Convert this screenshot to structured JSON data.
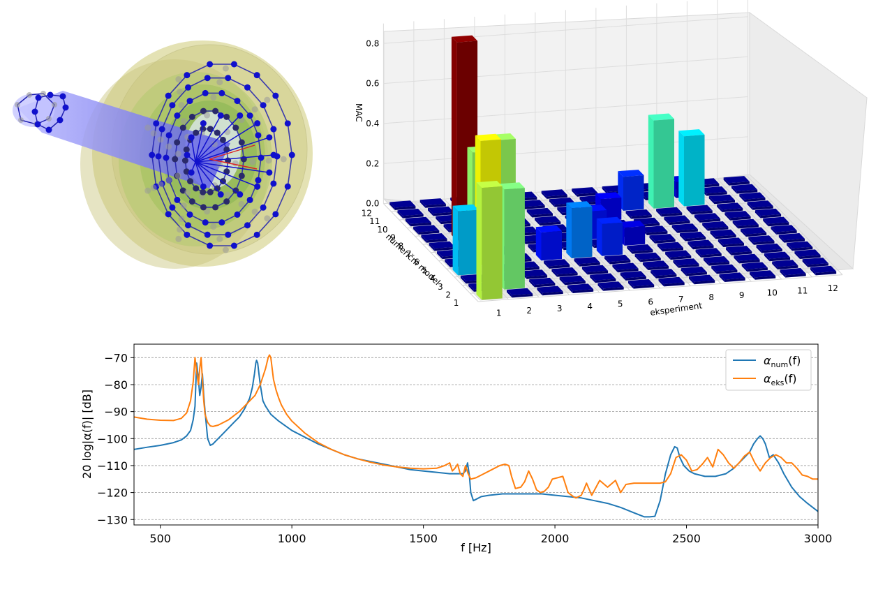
{
  "model": {
    "colors": {
      "shell": "#c8c47a",
      "inner": "#9fc15a",
      "tube": "#8f8ff0",
      "mesh": "#1f1fb0",
      "node": "#1010cc",
      "ghost": "#9a9a9a"
    }
  },
  "chart_data": [
    {
      "type": "bar3d",
      "zlabel": "MAC",
      "xlabel": "eksperiment",
      "ylabel": "numerični model",
      "x_ticks": [
        "1",
        "2",
        "3",
        "4",
        "5",
        "6",
        "7",
        "8",
        "9",
        "10",
        "11",
        "12"
      ],
      "y_ticks": [
        "1",
        "2",
        "3",
        "4",
        "5",
        "6",
        "7",
        "8",
        "9",
        "10",
        "11",
        "12"
      ],
      "z_ticks": [
        "0.0",
        "0.2",
        "0.4",
        "0.6",
        "0.8"
      ],
      "zlim": [
        0,
        0.9
      ],
      "colormap": "jet",
      "bars": [
        {
          "x": 1,
          "y": 1,
          "value": 0.56
        },
        {
          "x": 1,
          "y": 4,
          "value": 0.32
        },
        {
          "x": 2,
          "y": 2,
          "value": 0.5
        },
        {
          "x": 2,
          "y": 5,
          "value": 0.62
        },
        {
          "x": 2,
          "y": 6,
          "value": 0.52
        },
        {
          "x": 2,
          "y": 8,
          "value": 0.99
        },
        {
          "x": 3,
          "y": 7,
          "value": 0.53
        },
        {
          "x": 4,
          "y": 5,
          "value": 0.14
        },
        {
          "x": 5,
          "y": 5,
          "value": 0.25
        },
        {
          "x": 6,
          "y": 5,
          "value": 0.16
        },
        {
          "x": 6,
          "y": 7,
          "value": 0.14
        },
        {
          "x": 7,
          "y": 6,
          "value": 0.09
        },
        {
          "x": 7,
          "y": 9,
          "value": 0.11
        },
        {
          "x": 8,
          "y": 10,
          "value": 0.17
        },
        {
          "x": 9,
          "y": 10,
          "value": 0.44
        },
        {
          "x": 10,
          "y": 10,
          "value": 0.35
        },
        {
          "x": 10,
          "y": 11,
          "value": 0.08
        }
      ]
    },
    {
      "type": "line",
      "xlabel": "f [Hz]",
      "ylabel": "20 log|α(f)| [dB]",
      "xlim": [
        400,
        3000
      ],
      "ylim": [
        -132,
        -65
      ],
      "x_ticks": [
        500,
        1000,
        1500,
        2000,
        2500,
        3000
      ],
      "y_ticks": [
        -70,
        -80,
        -90,
        -100,
        -110,
        -120,
        -130
      ],
      "grid": "y-dashed",
      "legend_position": "top-right",
      "series": [
        {
          "name_prefix": "α",
          "name_sub": "num",
          "name_suffix": "(f)",
          "color": "#1f77b4",
          "x": [
            400,
            450,
            500,
            550,
            580,
            600,
            615,
            625,
            632,
            638,
            645,
            650,
            655,
            660,
            665,
            670,
            680,
            690,
            700,
            720,
            740,
            760,
            780,
            800,
            820,
            840,
            850,
            858,
            863,
            866,
            870,
            875,
            880,
            890,
            900,
            920,
            950,
            1000,
            1050,
            1100,
            1150,
            1200,
            1250,
            1300,
            1350,
            1400,
            1450,
            1500,
            1550,
            1600,
            1630,
            1650,
            1660,
            1668,
            1675,
            1680,
            1690,
            1700,
            1720,
            1750,
            1800,
            1850,
            1900,
            1950,
            2000,
            2050,
            2100,
            2150,
            2200,
            2250,
            2300,
            2340,
            2360,
            2380,
            2400,
            2420,
            2440,
            2455,
            2465,
            2475,
            2490,
            2510,
            2530,
            2550,
            2570,
            2590,
            2610,
            2630,
            2650,
            2680,
            2700,
            2720,
            2740,
            2755,
            2770,
            2780,
            2790,
            2800,
            2815,
            2830,
            2850,
            2870,
            2900,
            2930,
            2960,
            3000
          ],
          "y": [
            -104,
            -103.2,
            -102.5,
            -101.5,
            -100.5,
            -99,
            -97,
            -93,
            -88,
            -72,
            -78,
            -84,
            -81,
            -76,
            -84,
            -90,
            -100,
            -102.5,
            -102,
            -100,
            -98,
            -96,
            -94,
            -92,
            -89,
            -85,
            -81,
            -76,
            -72,
            -71,
            -72,
            -76,
            -80,
            -86,
            -88,
            -91,
            -93.5,
            -97,
            -99.5,
            -102,
            -104,
            -106,
            -107.5,
            -108.5,
            -109.5,
            -110.5,
            -111.5,
            -112,
            -112.5,
            -113,
            -113,
            -113,
            -112,
            -109,
            -114,
            -120,
            -123,
            -122.5,
            -121.5,
            -121,
            -120.5,
            -120.5,
            -120.5,
            -120.5,
            -121,
            -121.5,
            -122,
            -123,
            -124,
            -125.5,
            -127.5,
            -129,
            -129,
            -128.8,
            -123,
            -113,
            -106,
            -103,
            -103.5,
            -107,
            -110,
            -112,
            -113,
            -113.5,
            -114,
            -114,
            -114,
            -113.5,
            -113,
            -111,
            -109,
            -107,
            -105,
            -102,
            -100,
            -99,
            -100,
            -102,
            -107,
            -106,
            -109,
            -113,
            -118,
            -121.5,
            -124,
            -127
          ]
        },
        {
          "name_prefix": "α",
          "name_sub": "eks",
          "name_suffix": "(f)",
          "color": "#ff7f0e",
          "x": [
            400,
            450,
            500,
            550,
            580,
            600,
            615,
            625,
            632,
            638,
            645,
            650,
            655,
            660,
            665,
            670,
            680,
            690,
            700,
            720,
            740,
            760,
            780,
            800,
            820,
            840,
            860,
            880,
            900,
            910,
            915,
            920,
            925,
            930,
            940,
            950,
            960,
            980,
            1000,
            1050,
            1100,
            1150,
            1200,
            1250,
            1300,
            1350,
            1400,
            1450,
            1500,
            1550,
            1580,
            1600,
            1610,
            1620,
            1630,
            1640,
            1650,
            1660,
            1670,
            1680,
            1700,
            1730,
            1760,
            1790,
            1810,
            1825,
            1835,
            1850,
            1870,
            1885,
            1900,
            1915,
            1930,
            1945,
            1960,
            1975,
            1990,
            2010,
            2030,
            2050,
            2070,
            2080,
            2090,
            2100,
            2110,
            2120,
            2140,
            2170,
            2200,
            2230,
            2250,
            2270,
            2300,
            2330,
            2370,
            2400,
            2420,
            2440,
            2460,
            2480,
            2500,
            2520,
            2540,
            2560,
            2580,
            2600,
            2620,
            2640,
            2660,
            2680,
            2700,
            2720,
            2740,
            2760,
            2780,
            2800,
            2820,
            2840,
            2860,
            2880,
            2900,
            2920,
            2940,
            2960,
            2980,
            3000
          ],
          "y": [
            -92,
            -92.8,
            -93.2,
            -93.3,
            -92.5,
            -90.5,
            -86,
            -79,
            -70,
            -75,
            -80,
            -74,
            -70,
            -78,
            -86,
            -91,
            -94,
            -95.3,
            -95.5,
            -95,
            -94,
            -93,
            -91.5,
            -90,
            -88,
            -86,
            -84,
            -80,
            -74,
            -70,
            -69,
            -70,
            -74,
            -78,
            -82,
            -85,
            -87.5,
            -91,
            -93.5,
            -98,
            -101.5,
            -104,
            -106,
            -107.5,
            -108.8,
            -109.8,
            -110.5,
            -111,
            -111.2,
            -111,
            -110,
            -109,
            -112,
            -111,
            -109.5,
            -113,
            -114,
            -110,
            -113,
            -115,
            -114.5,
            -113,
            -111.5,
            -110,
            -109.5,
            -110,
            -114,
            -118.5,
            -118,
            -116,
            -112,
            -115,
            -119,
            -120,
            -119.5,
            -118,
            -115,
            -114.5,
            -114,
            -120,
            -121.5,
            -122,
            -121.5,
            -121,
            -119,
            -116.5,
            -121,
            -115.5,
            -118,
            -115.5,
            -120,
            -117,
            -116.5,
            -116.5,
            -116.5,
            -116.5,
            -116,
            -113,
            -107,
            -106,
            -108,
            -112,
            -111.5,
            -109.5,
            -107,
            -110.5,
            -104,
            -106,
            -109,
            -111,
            -109,
            -106.5,
            -105,
            -109,
            -112,
            -109,
            -107,
            -106,
            -107,
            -109,
            -109,
            -111,
            -113.5,
            -114,
            -115,
            -115
          ]
        }
      ]
    }
  ]
}
